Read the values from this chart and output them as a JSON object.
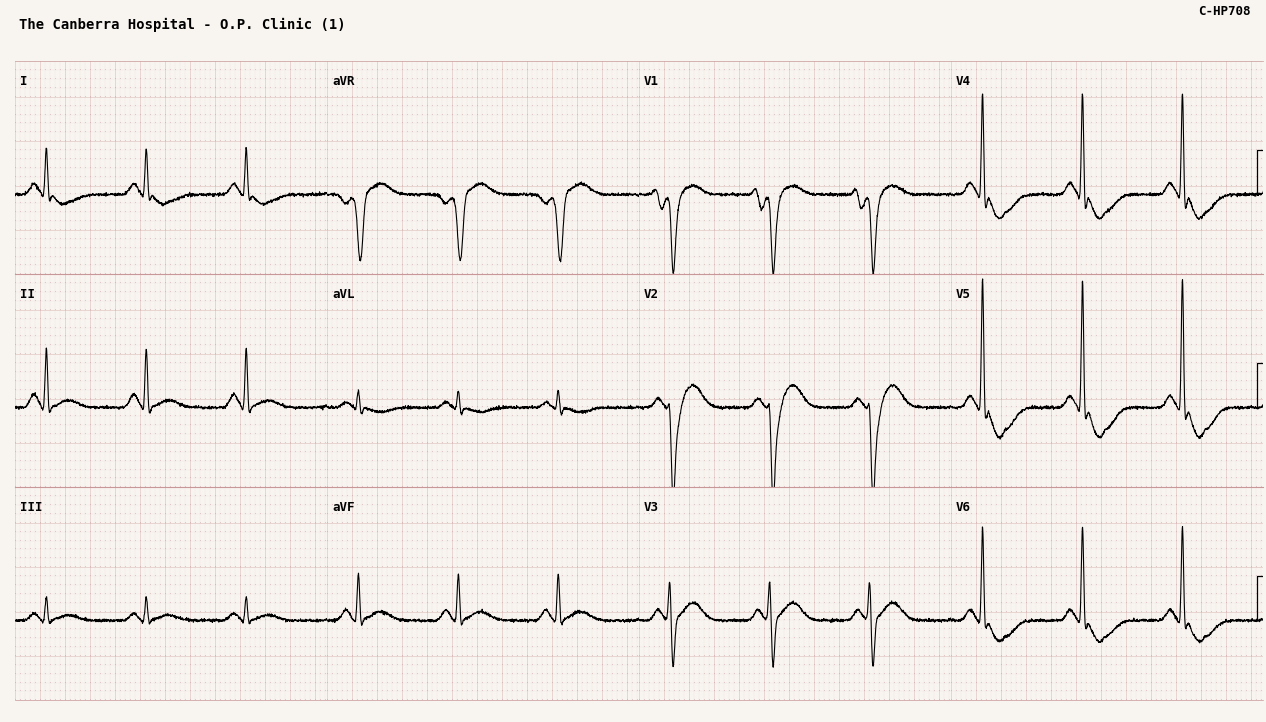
{
  "title": "The Canberra Hospital - O.P. Clinic (1)",
  "case_id": "C-HP708",
  "bg_color": "#f8f4f0",
  "grid_minor_color": "#d8b8b8",
  "grid_major_color": "#c89898",
  "ecg_color": "#000000",
  "text_color": "#000000",
  "row_labels": [
    [
      "I",
      "aVR",
      "V1",
      "V4"
    ],
    [
      "II",
      "aVL",
      "V2",
      "V5"
    ],
    [
      "III",
      "aVF",
      "V3",
      "V6"
    ]
  ],
  "n_rows": 3,
  "n_cols": 4,
  "hr_bpm": 75,
  "duration_per_strip": 2.5,
  "sample_rate": 500
}
